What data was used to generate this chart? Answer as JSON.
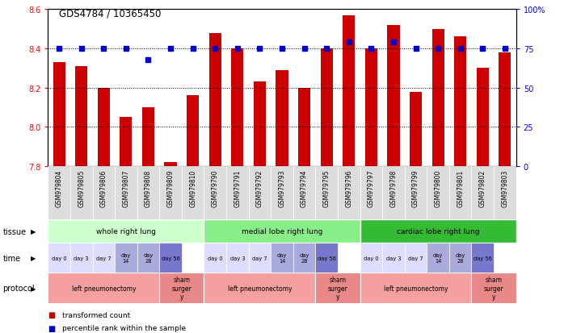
{
  "title": "GDS4784 / 10365450",
  "samples": [
    "GSM979804",
    "GSM979805",
    "GSM979806",
    "GSM979807",
    "GSM979808",
    "GSM979809",
    "GSM979810",
    "GSM979790",
    "GSM979791",
    "GSM979792",
    "GSM979793",
    "GSM979794",
    "GSM979795",
    "GSM979796",
    "GSM979797",
    "GSM979798",
    "GSM979799",
    "GSM979800",
    "GSM979801",
    "GSM979802",
    "GSM979803"
  ],
  "bar_values": [
    8.33,
    8.31,
    8.2,
    8.05,
    8.1,
    7.82,
    8.16,
    8.48,
    8.4,
    8.23,
    8.29,
    8.2,
    8.4,
    8.57,
    8.4,
    8.52,
    8.18,
    8.5,
    8.46,
    8.3,
    8.38
  ],
  "dot_values": [
    75,
    75,
    75,
    75,
    68,
    75,
    75,
    75,
    75,
    75,
    75,
    75,
    75,
    79,
    75,
    79,
    75,
    75,
    75,
    75,
    75
  ],
  "ylim_left": [
    7.8,
    8.6
  ],
  "ylim_right": [
    0,
    100
  ],
  "yticks_left": [
    7.8,
    8.0,
    8.2,
    8.4,
    8.6
  ],
  "yticks_right": [
    0,
    25,
    50,
    75,
    100
  ],
  "yticklabels_right": [
    "0",
    "25",
    "50",
    "75",
    "100%"
  ],
  "bar_color": "#cc0000",
  "dot_color": "#0000cc",
  "tissue_groups": [
    {
      "label": "whole right lung",
      "start": 0,
      "end": 7,
      "color": "#ccffcc"
    },
    {
      "label": "medial lobe right lung",
      "start": 7,
      "end": 14,
      "color": "#88ee88"
    },
    {
      "label": "cardiac lobe right lung",
      "start": 14,
      "end": 21,
      "color": "#33bb33"
    }
  ],
  "time_labels": [
    "day 0",
    "day 3",
    "day 7",
    "day\n14",
    "day\n28",
    "day 56",
    "day 0",
    "day 3",
    "day 7",
    "day\n14",
    "day\n28",
    "day 56",
    "day 0",
    "day 3",
    "day 7",
    "day\n14",
    "day\n28",
    "day 56"
  ],
  "time_positions": [
    0,
    1,
    2,
    3,
    4,
    5,
    7,
    8,
    9,
    10,
    11,
    12,
    14,
    15,
    16,
    17,
    18,
    19
  ],
  "time_colors": [
    "#ddddff",
    "#ddddff",
    "#ddddff",
    "#aaaadd",
    "#aaaadd",
    "#7777cc",
    "#ddddff",
    "#ddddff",
    "#ddddff",
    "#aaaadd",
    "#aaaadd",
    "#7777cc",
    "#ddddff",
    "#ddddff",
    "#ddddff",
    "#aaaadd",
    "#aaaadd",
    "#7777cc"
  ],
  "protocol_groups": [
    {
      "label": "left pneumonectomy",
      "start": 0,
      "end": 5,
      "color": "#f4a0a0"
    },
    {
      "label": "sham\nsurger\ny",
      "start": 5,
      "end": 7,
      "color": "#e88888"
    },
    {
      "label": "left pneumonectomy",
      "start": 7,
      "end": 12,
      "color": "#f4a0a0"
    },
    {
      "label": "sham\nsurger\ny",
      "start": 12,
      "end": 14,
      "color": "#e88888"
    },
    {
      "label": "left pneumonectomy",
      "start": 14,
      "end": 19,
      "color": "#f4a0a0"
    },
    {
      "label": "sham\nsurger\ny",
      "start": 19,
      "end": 21,
      "color": "#e88888"
    }
  ],
  "legend_items": [
    {
      "label": "transformed count",
      "color": "#cc0000"
    },
    {
      "label": "percentile rank within the sample",
      "color": "#0000cc"
    }
  ],
  "bg_color": "#ffffff",
  "label_row_color": "#dddddd"
}
